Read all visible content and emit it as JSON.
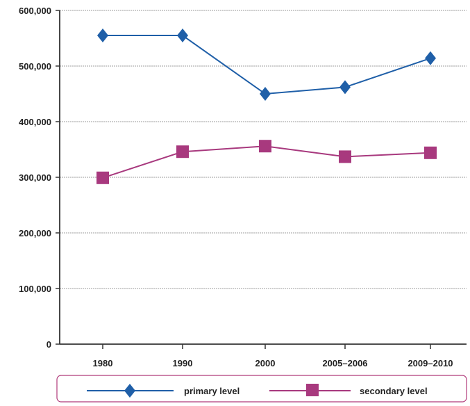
{
  "chart_data": {
    "type": "line",
    "title": "",
    "xlabel": "",
    "ylabel": "",
    "categories": [
      "1980",
      "1990",
      "2000",
      "2005–2006",
      "2009–2010"
    ],
    "ylim": [
      0,
      600000
    ],
    "yticks": [
      0,
      100000,
      200000,
      300000,
      400000,
      500000,
      600000
    ],
    "ytick_labels": [
      "0",
      "100,000",
      "200,000",
      "300,000",
      "400,000",
      "500,000",
      "600,000"
    ],
    "grid": true,
    "legend_position": "bottom",
    "series": [
      {
        "name": "primary level",
        "marker": "diamond",
        "color": "#1f5fa8",
        "values": [
          555000,
          555000,
          450000,
          462000,
          514000
        ]
      },
      {
        "name": "secondary level",
        "marker": "square",
        "color": "#a8397e",
        "values": [
          299000,
          346000,
          356000,
          337000,
          344000
        ]
      }
    ]
  },
  "colors": {
    "legend_border": "#b03a7a",
    "grid": "#b0b0b0",
    "axis": "#333333"
  }
}
